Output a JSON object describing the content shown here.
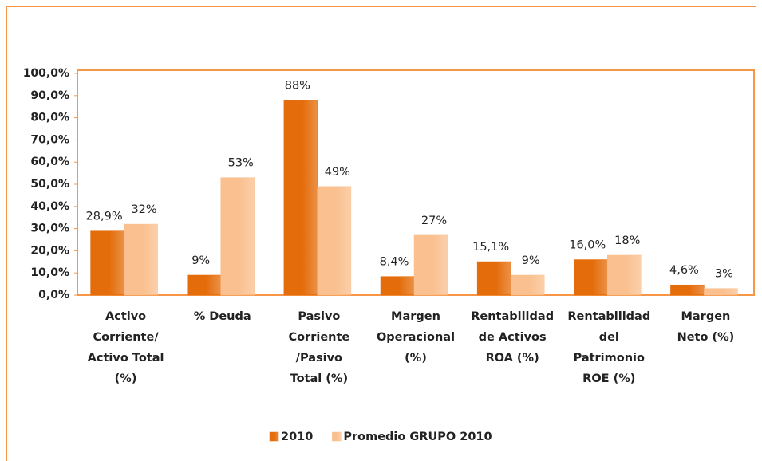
{
  "chart_data": {
    "type": "bar",
    "categories": [
      [
        "Activo",
        "Corriente/",
        "Activo Total",
        "(%)"
      ],
      [
        "% Deuda"
      ],
      [
        "Pasivo",
        "Corriente",
        "/Pasivo",
        "Total (%)"
      ],
      [
        "Margen",
        "Operacional",
        "(%)"
      ],
      [
        "Rentabilidad",
        "de Activos",
        "ROA (%)"
      ],
      [
        "Rentabilidad",
        "del",
        "Patrimonio",
        "ROE  (%)"
      ],
      [
        "Margen",
        "Neto  (%)"
      ]
    ],
    "series": [
      {
        "name": "2010",
        "color": "#e46c0a",
        "values": [
          28.9,
          9,
          88,
          8.4,
          15.1,
          16.0,
          4.6
        ],
        "value_labels": [
          "28,9%",
          "9%",
          "88%",
          "8,4%",
          "15,1%",
          "16,0%",
          "4,6%"
        ]
      },
      {
        "name": "Promedio GRUPO 2010",
        "color": "#fac08f",
        "values": [
          32,
          53,
          49,
          27,
          9,
          18,
          3
        ],
        "value_labels": [
          "32%",
          "53%",
          "49%",
          "27%",
          "9%",
          "18%",
          "3%"
        ]
      }
    ],
    "ylim": [
      0,
      100
    ],
    "yticks": [
      {
        "value": 0,
        "label": "0,0%"
      },
      {
        "value": 10,
        "label": "10,0%"
      },
      {
        "value": 20,
        "label": "20,0%"
      },
      {
        "value": 30,
        "label": "30,0%"
      },
      {
        "value": 40,
        "label": "40,0%"
      },
      {
        "value": 50,
        "label": "50,0%"
      },
      {
        "value": 60,
        "label": "60,0%"
      },
      {
        "value": 70,
        "label": "70,0%"
      },
      {
        "value": 80,
        "label": "80,0%"
      },
      {
        "value": 90,
        "label": "90,0%"
      },
      {
        "value": 100,
        "label": "100,0%"
      }
    ],
    "grid": false,
    "legend": "bottom"
  }
}
